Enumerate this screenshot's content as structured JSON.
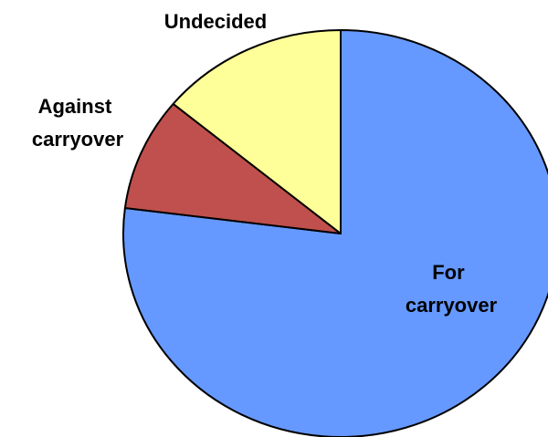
{
  "chart_data": {
    "type": "pie",
    "start_angle_deg": 0,
    "direction": "clockwise",
    "slices": [
      {
        "label_lines": [
          "For",
          "carryover"
        ],
        "value": 77,
        "color": "#6699ff"
      },
      {
        "label_lines": [
          "Against",
          "carryover"
        ],
        "value": 9,
        "color": "#c0504d"
      },
      {
        "label_lines": [
          "Undecided"
        ],
        "value": 14,
        "color": "#ffff99"
      }
    ]
  }
}
